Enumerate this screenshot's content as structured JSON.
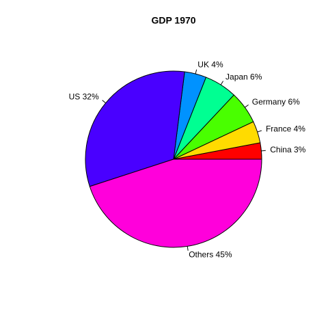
{
  "chart_data": {
    "type": "pie",
    "title": "GDP 1970",
    "labels": [
      "China 3%",
      "France 4%",
      "Germany 6%",
      "Japan 6%",
      "UK 4%",
      "US 32%",
      "Others 45%"
    ],
    "values": [
      3,
      4,
      6,
      6,
      4,
      32,
      45
    ],
    "colors": [
      "#FF0000",
      "#FFDB00",
      "#49FF00",
      "#00FF92",
      "#0092FF",
      "#4900FF",
      "#FF00DB"
    ]
  }
}
